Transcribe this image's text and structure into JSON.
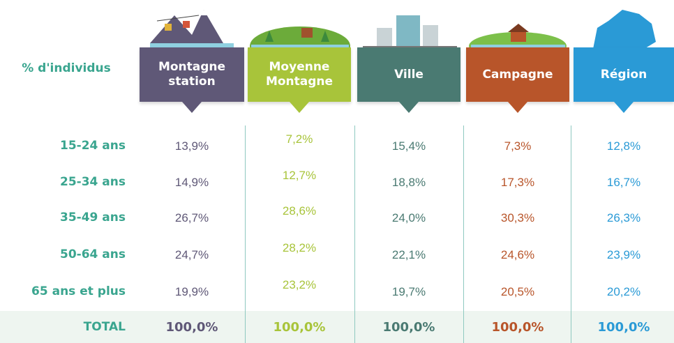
{
  "header": {
    "row_label": "% d'individus",
    "columns": [
      "Montagne station",
      "Moyenne Montagne",
      "Ville",
      "Campagne",
      "Région"
    ]
  },
  "rows": [
    {
      "label": "15-24 ans",
      "values": [
        "13,9%",
        "7,2%",
        "15,4%",
        "7,3%",
        "12,8%"
      ]
    },
    {
      "label": "25-34 ans",
      "values": [
        "14,9%",
        "12,7%",
        "18,8%",
        "17,3%",
        "16,7%"
      ]
    },
    {
      "label": "35-49 ans",
      "values": [
        "26,7%",
        "28,6%",
        "24,0%",
        "30,3%",
        "26,3%"
      ]
    },
    {
      "label": "50-64 ans",
      "values": [
        "24,7%",
        "28,2%",
        "22,1%",
        "24,6%",
        "23,9%"
      ]
    },
    {
      "label": "65 ans et plus",
      "values": [
        "19,9%",
        "23,2%",
        "19,7%",
        "20,5%",
        "20,2%"
      ]
    }
  ],
  "total": {
    "label": "TOTAL",
    "values": [
      "100,0%",
      "100,0%",
      "100,0%",
      "100,0%",
      "100,0%"
    ]
  }
}
